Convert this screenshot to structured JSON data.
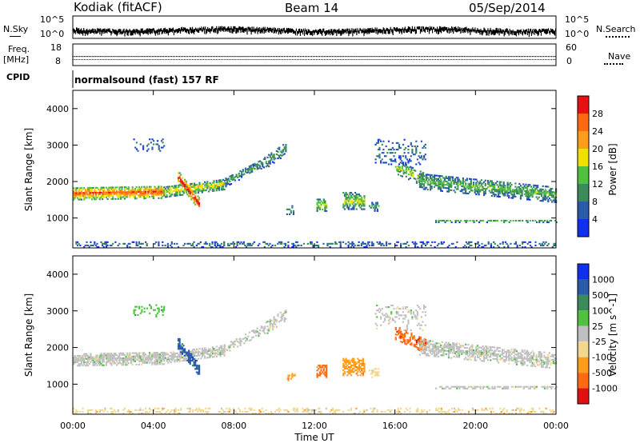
{
  "header": {
    "station": "Kodiak (fitACF)",
    "beam": "Beam 14",
    "date": "05/Sep/2014"
  },
  "side_labels": {
    "nsky": "N.Sky",
    "nsearch": "N.Search",
    "freq": "Freq.",
    "mhz": "[MHz]",
    "nave": "Nave",
    "cpid": "CPID",
    "mode": "normalsound (fast) 157 RF"
  },
  "noise_ticks": {
    "top": "10^5",
    "bottom": "10^0"
  },
  "freq_ticks": {
    "top": "18",
    "bottom": "8"
  },
  "nave_ticks": {
    "top": "60",
    "bottom": "0"
  },
  "colors": {
    "power": [
      "#1030f0",
      "#2a5aa8",
      "#3a8a5a",
      "#50c040",
      "#f0e000",
      "#ff9c1a",
      "#ff6a10",
      "#e81010"
    ],
    "velocity": [
      "#e01010",
      "#ff6a10",
      "#ff9c1a",
      "#f0d890",
      "#c0c0c0",
      "#50c040",
      "#3a8a5a",
      "#2a5aa8",
      "#1030f0"
    ]
  },
  "chart_data": [
    {
      "type": "heatmap",
      "panel": "power",
      "xlabel": "Time UT",
      "ylabel": "Slant Range [km]",
      "xlim": [
        0,
        24
      ],
      "ylim": [
        180,
        4500
      ],
      "x_ticks": [
        "00:00",
        "04:00",
        "08:00",
        "12:00",
        "16:00",
        "20:00",
        "00:00"
      ],
      "y_ticks": [
        1000,
        2000,
        3000,
        4000
      ],
      "colorbar": {
        "label": "Power [dB]",
        "ticks": [
          "4",
          "8",
          "12",
          "16",
          "20",
          "24",
          "28"
        ],
        "range": [
          0,
          30
        ]
      }
    },
    {
      "type": "heatmap",
      "panel": "velocity",
      "xlabel": "Time UT",
      "ylabel": "Slant Range [km]",
      "xlim": [
        0,
        24
      ],
      "ylim": [
        180,
        4500
      ],
      "x_ticks": [
        "00:00",
        "04:00",
        "08:00",
        "12:00",
        "16:00",
        "20:00",
        "00:00"
      ],
      "y_ticks": [
        1000,
        2000,
        3000,
        4000
      ],
      "colorbar": {
        "label": "Velocity [m s^-1]",
        "ticks": [
          "1000",
          "500",
          "100",
          "25",
          "-25",
          "-100",
          "-500",
          "-1000"
        ]
      }
    }
  ]
}
